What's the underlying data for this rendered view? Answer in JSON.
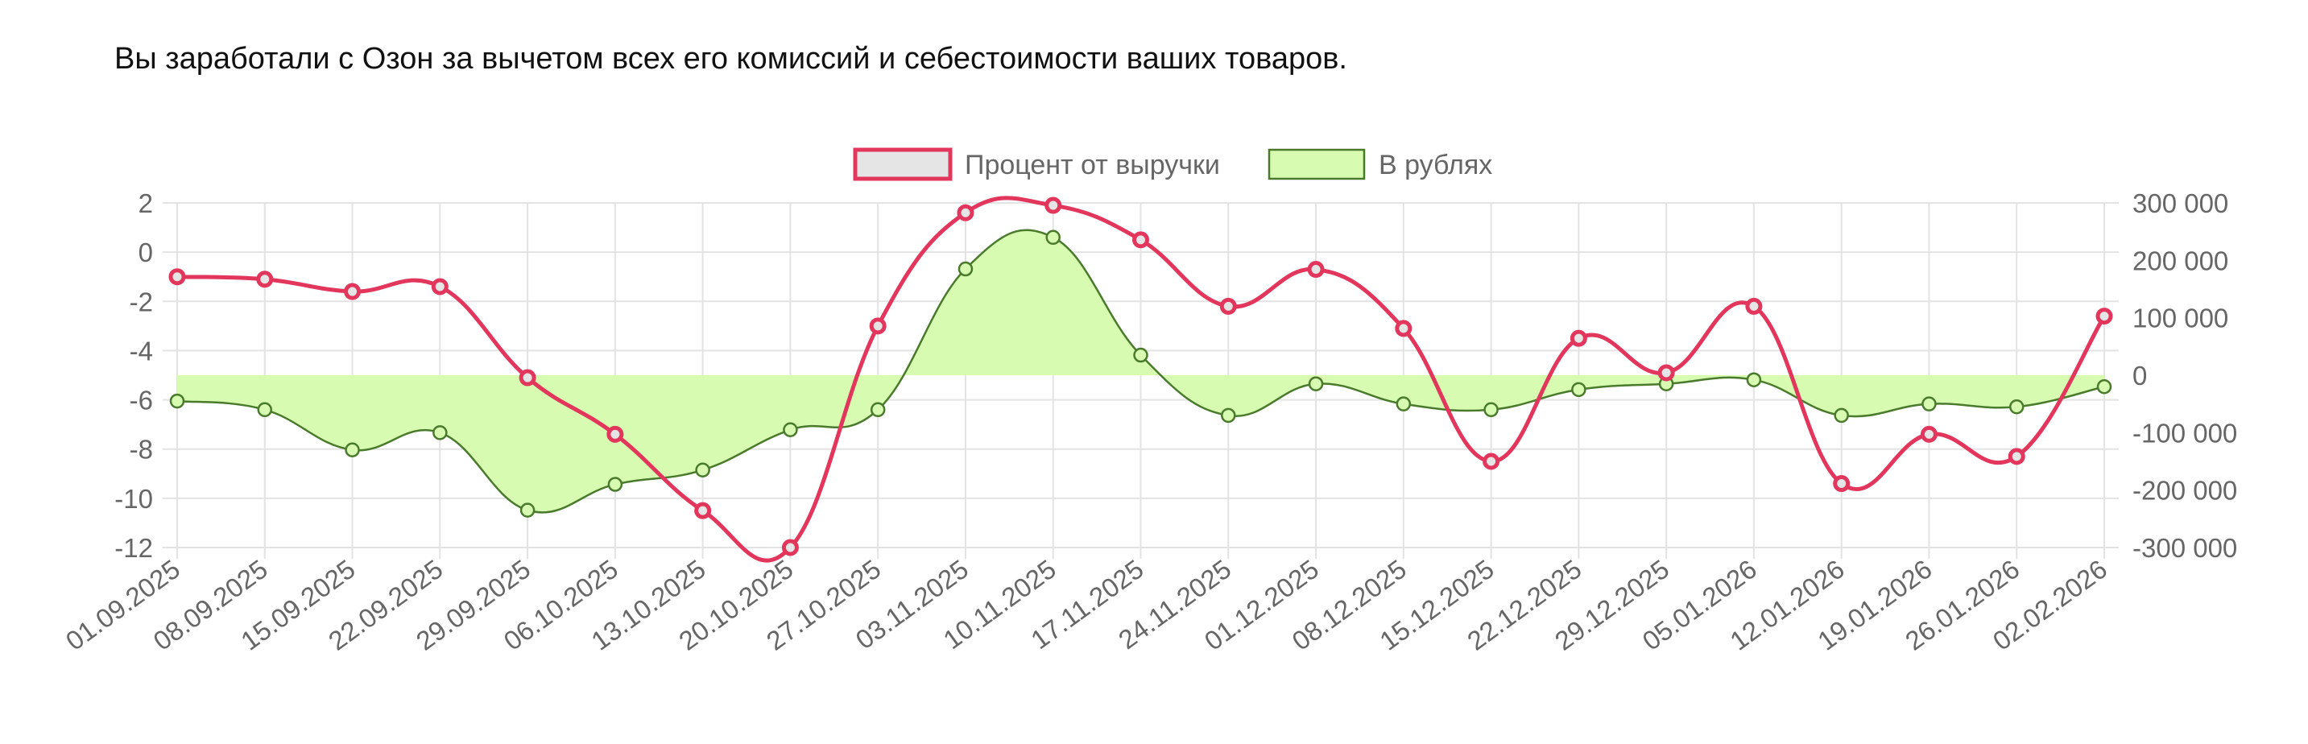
{
  "description_text": "Вы заработали с Озон за вычетом всех его комиссий и себестоимости ваших товаров.",
  "chart_data": {
    "type": "line",
    "x": [
      "01.09.2025",
      "08.09.2025",
      "15.09.2025",
      "22.09.2025",
      "29.09.2025",
      "06.10.2025",
      "13.10.2025",
      "20.10.2025",
      "27.10.2025",
      "03.11.2025",
      "10.11.2025",
      "17.11.2025",
      "24.11.2025",
      "01.12.2025",
      "08.12.2025",
      "15.12.2025",
      "22.12.2025",
      "29.12.2025",
      "05.01.2026",
      "12.01.2026",
      "19.01.2026",
      "26.01.2026",
      "02.02.2026"
    ],
    "series": [
      {
        "name": "Процент от выручки",
        "axis": "left",
        "color": "#e2365c",
        "fill": "#e5e5e5",
        "values": [
          -1.0,
          -1.1,
          -1.6,
          -1.4,
          -5.1,
          -7.4,
          -10.5,
          -12.0,
          -3.0,
          1.6,
          1.9,
          0.5,
          -2.2,
          -0.7,
          -3.1,
          -8.5,
          -3.5,
          -4.9,
          -2.2,
          -9.4,
          -7.4,
          -8.3,
          -2.6
        ]
      },
      {
        "name": "В рублях",
        "axis": "right",
        "color": "#4a7a2c",
        "fill": "#d6fbb1",
        "values": [
          -45000,
          -60000,
          -130000,
          -100000,
          -235000,
          -190000,
          -165000,
          -95000,
          -60000,
          185000,
          240000,
          35000,
          -70000,
          -15000,
          -50000,
          -60000,
          -25000,
          -15000,
          -8000,
          -70000,
          -50000,
          -55000,
          -20000
        ]
      }
    ],
    "y_left": {
      "range": [
        -12,
        2
      ],
      "ticks": [
        "2",
        "0",
        "-2",
        "-4",
        "-6",
        "-8",
        "-10",
        "-12"
      ]
    },
    "y_right": {
      "range": [
        -300000,
        300000
      ],
      "ticks": [
        "300 000",
        "200 000",
        "100 000",
        "0",
        "-100 000",
        "-200 000",
        "-300 000"
      ]
    },
    "grid": true,
    "legend_position": "top-center"
  }
}
